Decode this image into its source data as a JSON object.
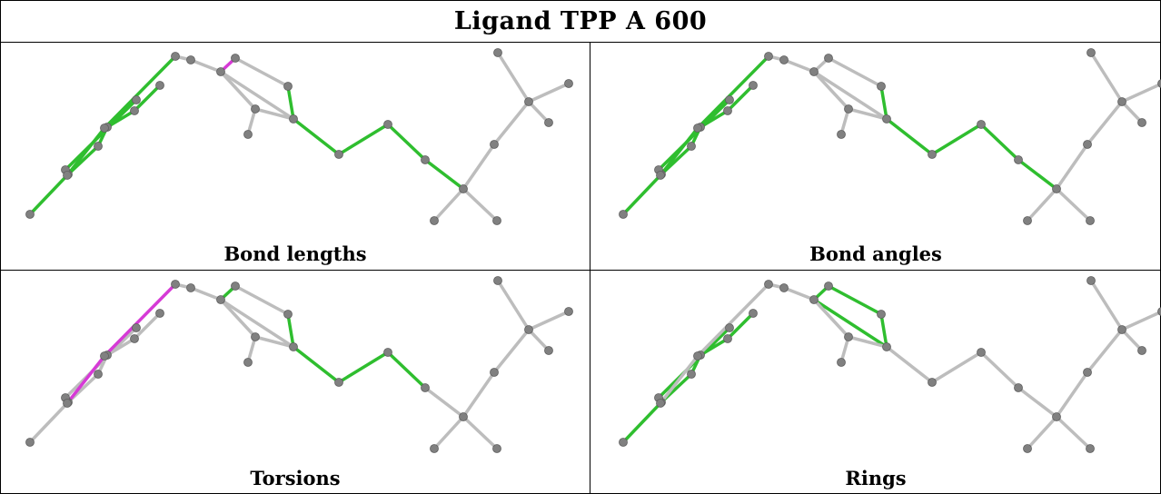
{
  "title": "Ligand TPP A 600",
  "colors": {
    "grey": "#bdbdbd",
    "green": "#2fbe2f",
    "magenta": "#d63ad6",
    "atom": "#808080"
  },
  "panels": [
    {
      "label": "Bond lengths",
      "green": [
        "0-1",
        "1-2",
        "2-3",
        "3-4",
        "4-5",
        "6-7",
        "7-8",
        "8-9",
        "9-10",
        "11-13",
        "13-14",
        "14-15",
        "15-16",
        "16-17",
        "17-18",
        "17-19",
        "17-20",
        "22-23",
        "22-24",
        "22-25"
      ],
      "magenta": [
        "1-21",
        "21-10",
        "10-11",
        "11-12"
      ]
    },
    {
      "label": "Bond angles",
      "green": [
        "0-1",
        "1-2",
        "2-3",
        "3-4",
        "4-5",
        "6-7",
        "7-8",
        "8-9",
        "9-10",
        "11-13",
        "13-14",
        "14-15",
        "15-16",
        "16-17",
        "17-18",
        "17-19",
        "22-23",
        "22-24",
        "22-25"
      ],
      "magenta": [
        "21-10",
        "10-11",
        "1-21",
        "1-3",
        "17-20",
        "21-26"
      ]
    },
    {
      "label": "Torsions",
      "green": [
        "11-12",
        "11-13",
        "13-14",
        "14-15",
        "15-16",
        "16-17",
        "22-23",
        "22-24",
        "22-25",
        "20-22"
      ],
      "magenta": [
        "8-9",
        "9-10",
        "17-20"
      ]
    },
    {
      "label": "Rings",
      "green": [
        "0-1",
        "1-2",
        "2-3",
        "3-4",
        "4-5",
        "6-7",
        "11-12",
        "12-13",
        "13-14",
        "14-11",
        "11-27",
        "12-27"
      ],
      "magenta": []
    }
  ]
}
